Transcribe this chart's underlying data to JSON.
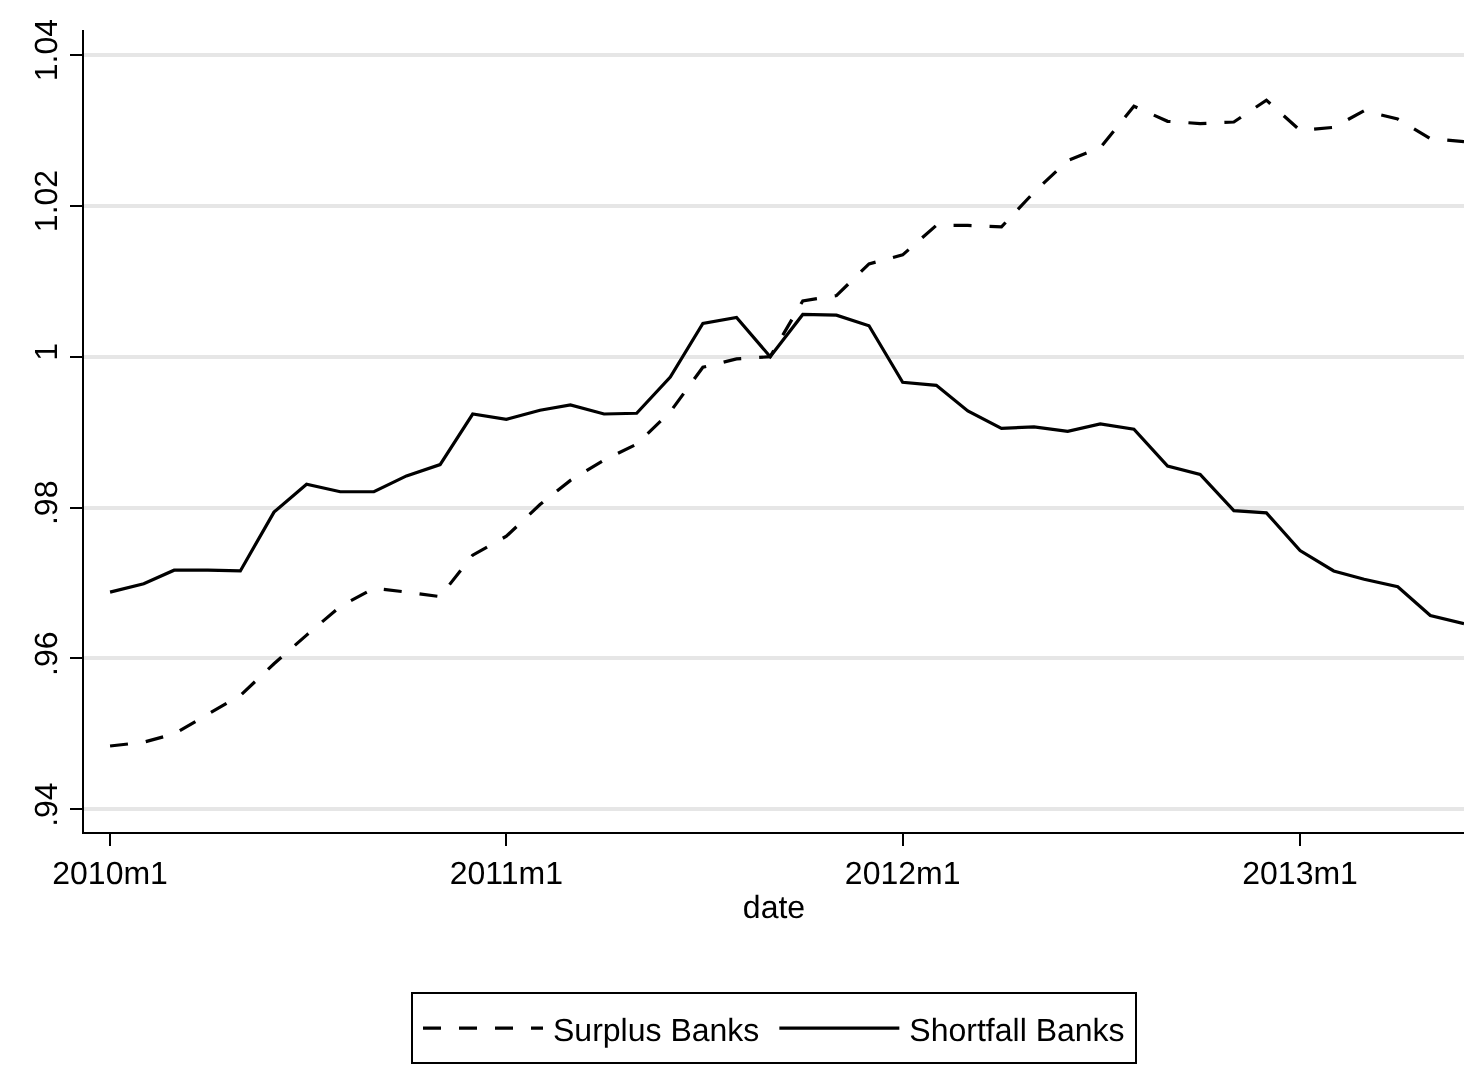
{
  "chart_data": {
    "type": "line",
    "xlabel": "date",
    "x": [
      "2010-01",
      "2010-02",
      "2010-03",
      "2010-04",
      "2010-05",
      "2010-06",
      "2010-07",
      "2010-08",
      "2010-09",
      "2010-10",
      "2010-11",
      "2010-12",
      "2011-01",
      "2011-02",
      "2011-03",
      "2011-04",
      "2011-05",
      "2011-06",
      "2011-07",
      "2011-08",
      "2011-09",
      "2011-10",
      "2011-11",
      "2011-12",
      "2012-01",
      "2012-02",
      "2012-03",
      "2012-04",
      "2012-05",
      "2012-06",
      "2012-07",
      "2012-08",
      "2012-09",
      "2012-10",
      "2012-11",
      "2012-12",
      "2013-01",
      "2013-02",
      "2013-03",
      "2013-04",
      "2013-05",
      "2013-06"
    ],
    "series": [
      {
        "name": "Surplus Banks",
        "color": "#000000",
        "line_style": "dashed",
        "values": [
          0.9484,
          0.9489,
          0.95,
          0.9526,
          0.9551,
          0.9593,
          0.9631,
          0.9669,
          0.9693,
          0.9688,
          0.9682,
          0.9737,
          0.9762,
          0.9804,
          0.9836,
          0.9863,
          0.9884,
          0.9927,
          0.9986,
          0.9997,
          1.0,
          1.0074,
          1.0081,
          1.0123,
          1.0135,
          1.0174,
          1.0174,
          1.0172,
          1.0218,
          1.026,
          1.0277,
          1.0332,
          1.0312,
          1.0309,
          1.0311,
          1.034,
          1.03,
          1.0304,
          1.0326,
          1.0315,
          1.0289,
          1.0285
        ]
      },
      {
        "name": "Shortfall Banks",
        "color": "#000000",
        "line_style": "solid",
        "values": [
          0.9688,
          0.9699,
          0.9717,
          0.9717,
          0.9716,
          0.9794,
          0.9831,
          0.9821,
          0.9821,
          0.9842,
          0.9857,
          0.9924,
          0.9917,
          0.9929,
          0.9936,
          0.9924,
          0.9925,
          0.9973,
          1.0044,
          1.0052,
          1.0,
          1.0056,
          1.0055,
          1.0041,
          0.9966,
          0.9962,
          0.9928,
          0.9905,
          0.9907,
          0.9901,
          0.9911,
          0.9904,
          0.9855,
          0.9844,
          0.9796,
          0.9793,
          0.9743,
          0.9716,
          0.9705,
          0.9695,
          0.9657,
          0.9646
        ]
      }
    ],
    "xlim": [
      "2009-12-08",
      "2013-06-01"
    ],
    "xticks": [
      {
        "value": "2010-01",
        "label": "2010m1"
      },
      {
        "value": "2011-01",
        "label": "2011m1"
      },
      {
        "value": "2012-01",
        "label": "2012m1"
      },
      {
        "value": "2013-01",
        "label": "2013m1"
      }
    ],
    "ylim": [
      0.937,
      1.0433
    ],
    "yticks": [
      {
        "value": 0.94,
        "label": ".94"
      },
      {
        "value": 0.96,
        "label": ".96"
      },
      {
        "value": 0.98,
        "label": ".98"
      },
      1,
      1.02,
      1.04
    ],
    "grid": "y",
    "legend": "bottom",
    "marker": "none"
  }
}
